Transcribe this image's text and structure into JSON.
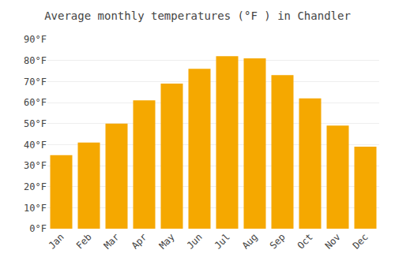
{
  "chart_data": {
    "type": "bar",
    "title": "Average monthly temperatures (°F ) in Chandler",
    "categories": [
      "Jan",
      "Feb",
      "Mar",
      "Apr",
      "May",
      "Jun",
      "Jul",
      "Aug",
      "Sep",
      "Oct",
      "Nov",
      "Dec"
    ],
    "values": [
      35,
      41,
      50,
      61,
      69,
      76,
      82,
      81,
      73,
      62,
      49,
      39
    ],
    "color": "#F5A800",
    "ylim": [
      0,
      90
    ],
    "yticks": [
      {
        "value": 0,
        "label": "0°F"
      },
      {
        "value": 10,
        "label": "10°F"
      },
      {
        "value": 20,
        "label": "20°F"
      },
      {
        "value": 30,
        "label": "30°F"
      },
      {
        "value": 40,
        "label": "40°F"
      },
      {
        "value": 50,
        "label": "50°F"
      },
      {
        "value": 60,
        "label": "60°F"
      },
      {
        "value": 70,
        "label": "70°F"
      },
      {
        "value": 80,
        "label": "80°F"
      },
      {
        "value": 90,
        "label": "90°F"
      }
    ],
    "grid": true
  }
}
